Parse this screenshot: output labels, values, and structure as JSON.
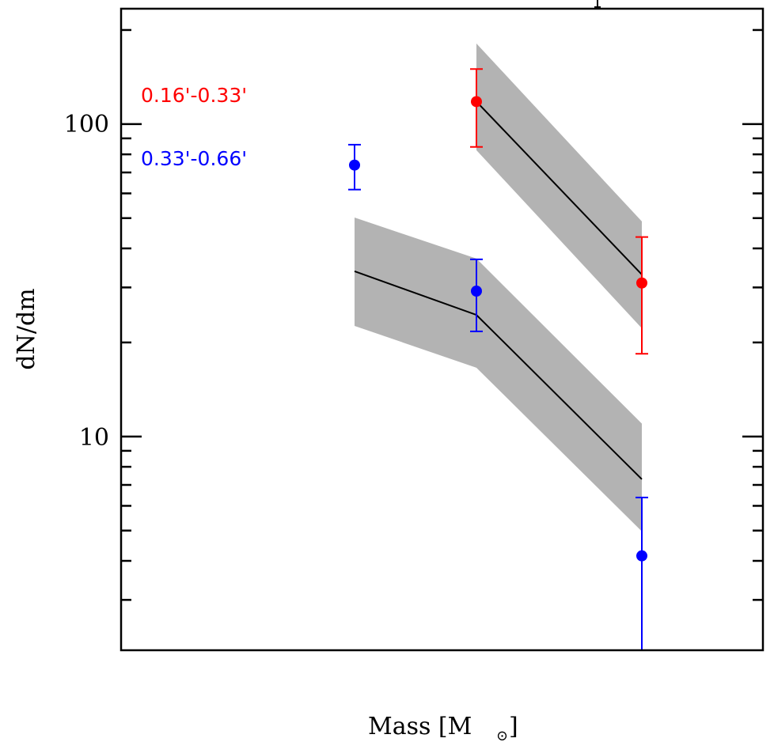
{
  "chart_data": {
    "type": "scatter",
    "title": "",
    "xlabel": "Mass [M",
    "xlabel_subscript": "⊙",
    "xlabel_close": "]",
    "ylabel": "dN/dm",
    "yscale": "log",
    "ylim": [
      2.07,
      234
    ],
    "y_major_ticks": [
      10,
      100
    ],
    "y_tick_labels": [
      "10",
      "100"
    ],
    "y_minor_ticks": [
      3,
      4,
      5,
      6,
      7,
      8,
      9,
      20,
      30,
      40,
      50,
      60,
      70,
      80,
      90,
      200
    ],
    "x_tick_labels": [],
    "x_bins": [
      1,
      2,
      3
    ],
    "grid": false,
    "legend_position": "top-left",
    "series": [
      {
        "name": "0.16'-0.33'",
        "color": "#ff0000",
        "points": [
          {
            "bin": 2,
            "y": 118,
            "err_low": 84.5,
            "err_high": 150
          },
          {
            "bin": 3,
            "y": 31,
            "err_low": 18.4,
            "err_high": 43.5
          }
        ],
        "model": {
          "bins": [
            2,
            3
          ],
          "line": [
            118,
            33
          ],
          "band_low": [
            82.5,
            22.2
          ],
          "band_high": [
            181,
            48.8
          ]
        }
      },
      {
        "name": "0.33'-0.66'",
        "color": "#0000ff",
        "points": [
          {
            "bin": 1,
            "y": 73.9,
            "err_low": 61.7,
            "err_high": 85.9
          },
          {
            "bin": 2,
            "y": 29.2,
            "err_low": 21.7,
            "err_high": 36.9
          },
          {
            "bin": 3,
            "y": 4.15,
            "err_low": 2.07,
            "err_high": 6.38
          }
        ],
        "model": {
          "bins": [
            1,
            2,
            3
          ],
          "line": [
            33.8,
            24.5,
            7.3
          ],
          "band_low": [
            22.6,
            16.6,
            4.97
          ],
          "band_high": [
            50.2,
            37.1,
            11.0
          ]
        }
      }
    ],
    "band_color": "#b3b3b3",
    "line_color": "#000000"
  }
}
